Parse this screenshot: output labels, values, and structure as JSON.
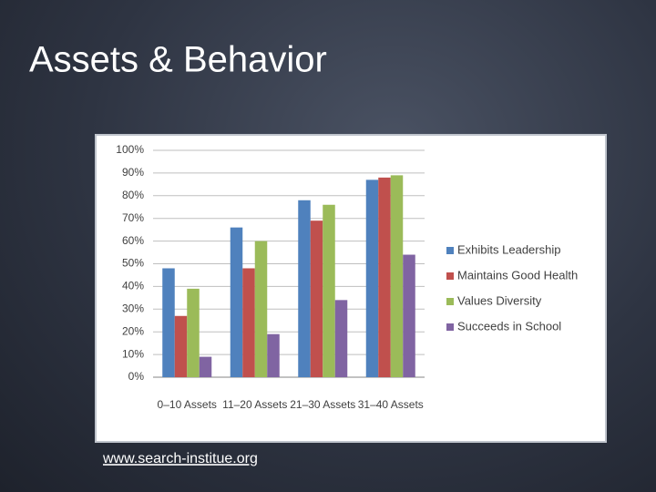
{
  "title": "Assets & Behavior",
  "link": "www.search-institue.org",
  "chart_data": {
    "type": "bar",
    "categories": [
      "0–10 Assets",
      "11–20 Assets",
      "21–30 Assets",
      "31–40 Assets"
    ],
    "series": [
      {
        "name": "Exhibits Leadership",
        "color": "#4f81bd",
        "values": [
          48,
          66,
          78,
          87
        ]
      },
      {
        "name": "Maintains Good Health",
        "color": "#c0504d",
        "values": [
          27,
          48,
          69,
          88
        ]
      },
      {
        "name": "Values Diversity",
        "color": "#9bbb59",
        "values": [
          39,
          60,
          76,
          89
        ]
      },
      {
        "name": "Succeeds in School",
        "color": "#8064a2",
        "values": [
          9,
          19,
          34,
          54
        ]
      }
    ],
    "ylim": [
      0,
      100
    ],
    "yticks": [
      {
        "value": 0,
        "label": "0%"
      },
      {
        "value": 10,
        "label": "10%"
      },
      {
        "value": 20,
        "label": "20%"
      },
      {
        "value": 30,
        "label": "30%"
      },
      {
        "value": 40,
        "label": "40%"
      },
      {
        "value": 50,
        "label": "50%"
      },
      {
        "value": 60,
        "label": "60%"
      },
      {
        "value": 70,
        "label": "70%"
      },
      {
        "value": 80,
        "label": "80%"
      },
      {
        "value": 90,
        "label": "90%"
      },
      {
        "value": 100,
        "label": "100%"
      }
    ],
    "grid": true,
    "legend": "right"
  }
}
